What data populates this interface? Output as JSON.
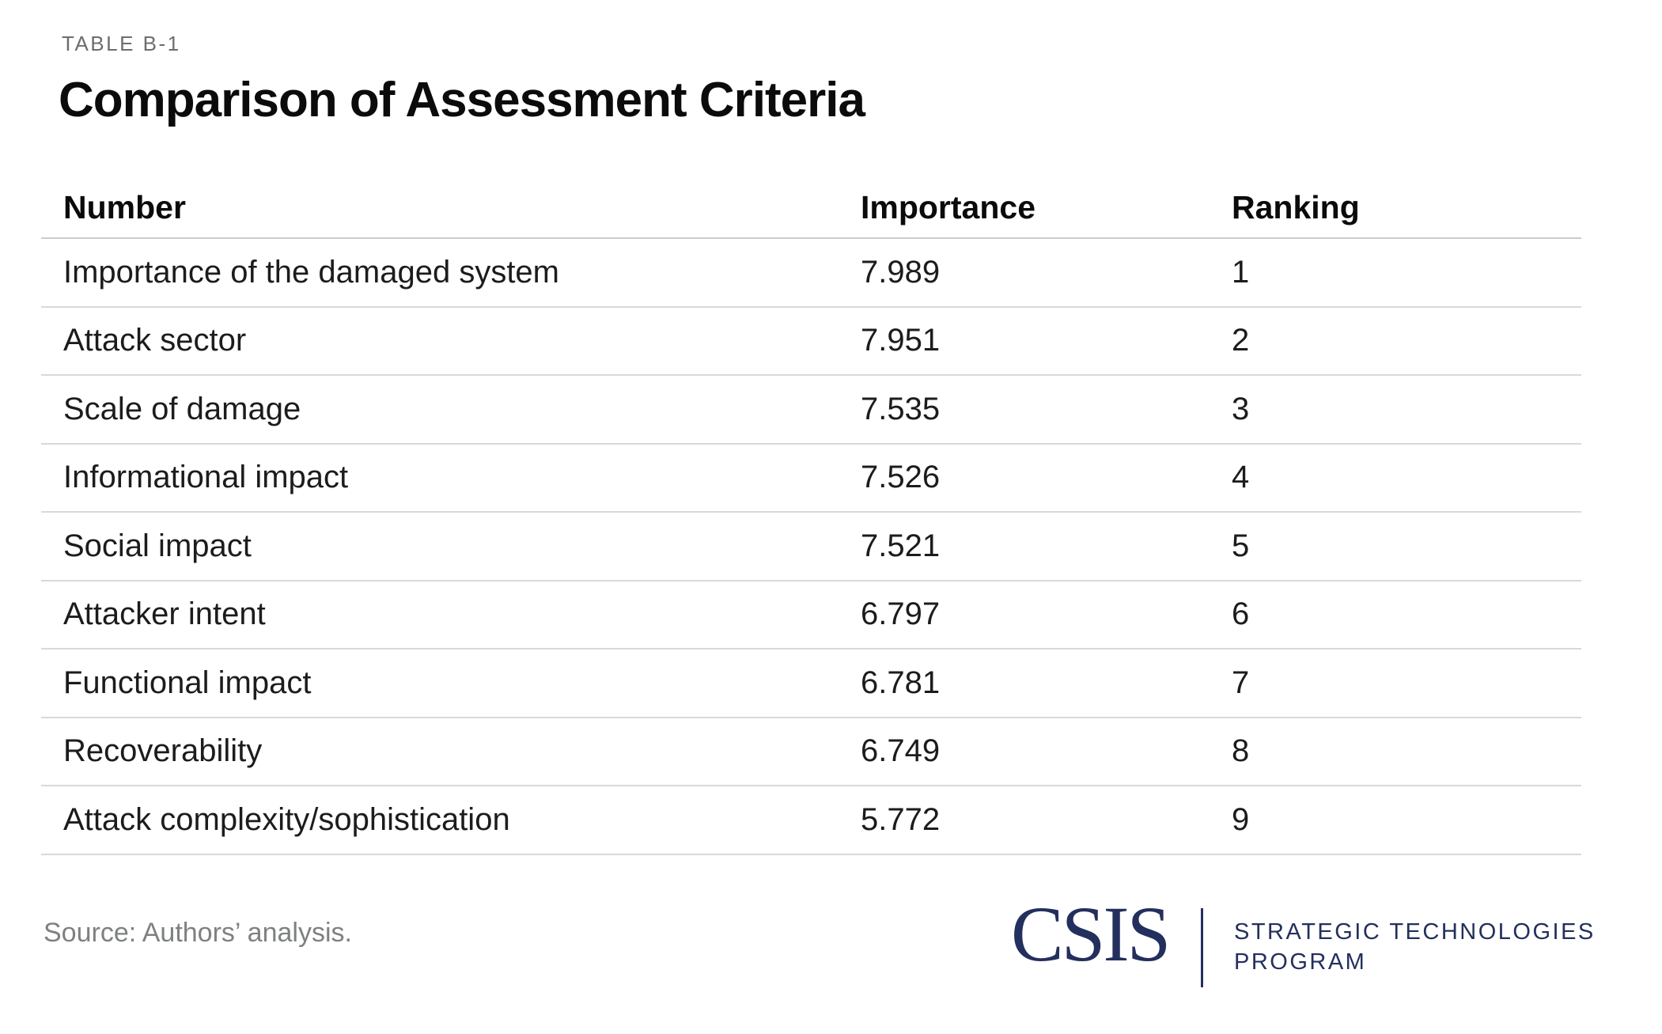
{
  "header": {
    "label": "TABLE B-1",
    "title": "Comparison of Assessment Criteria"
  },
  "table": {
    "columns": [
      "Number",
      "Importance",
      "Ranking"
    ],
    "rows": [
      {
        "number": "Importance of the damaged system",
        "importance": "7.989",
        "ranking": "1"
      },
      {
        "number": "Attack sector",
        "importance": "7.951",
        "ranking": "2"
      },
      {
        "number": "Scale of damage",
        "importance": "7.535",
        "ranking": "3"
      },
      {
        "number": "Informational impact",
        "importance": "7.526",
        "ranking": "4"
      },
      {
        "number": "Social impact",
        "importance": "7.521",
        "ranking": "5"
      },
      {
        "number": "Attacker intent",
        "importance": "6.797",
        "ranking": "6"
      },
      {
        "number": "Functional impact",
        "importance": "6.781",
        "ranking": "7"
      },
      {
        "number": "Recoverability",
        "importance": "6.749",
        "ranking": "8"
      },
      {
        "number": "Attack complexity/sophistication",
        "importance": "5.772",
        "ranking": "9"
      }
    ]
  },
  "footer": {
    "source": "Source: Authors’ analysis.",
    "logo": {
      "wordmark": "CSIS",
      "program_line1": "STRATEGIC TECHNOLOGIES",
      "program_line2": "PROGRAM"
    }
  },
  "colors": {
    "brand_navy": "#232f5d",
    "text": "#1c1c1c",
    "muted_label": "#6b6d70",
    "source_gray": "#7e8082",
    "rule_gray": "#d9d9d9"
  },
  "chart_data": {
    "type": "table",
    "title": "Comparison of Assessment Criteria",
    "label": "TABLE B-1",
    "columns": [
      "Number",
      "Importance",
      "Ranking"
    ],
    "rows": [
      [
        "Importance of the damaged system",
        7.989,
        1
      ],
      [
        "Attack sector",
        7.951,
        2
      ],
      [
        "Scale of damage",
        7.535,
        3
      ],
      [
        "Informational impact",
        7.526,
        4
      ],
      [
        "Social impact",
        7.521,
        5
      ],
      [
        "Attacker intent",
        6.797,
        6
      ],
      [
        "Functional impact",
        6.781,
        7
      ],
      [
        "Recoverability",
        6.749,
        8
      ],
      [
        "Attack complexity/sophistication",
        5.772,
        9
      ]
    ],
    "source": "Source: Authors’ analysis."
  }
}
